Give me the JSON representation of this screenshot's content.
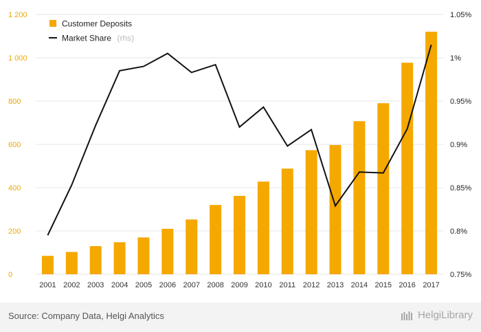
{
  "chart_data": {
    "type": "bar",
    "categories": [
      "2001",
      "2002",
      "2003",
      "2004",
      "2005",
      "2006",
      "2007",
      "2008",
      "2009",
      "2010",
      "2011",
      "2012",
      "2013",
      "2014",
      "2015",
      "2016",
      "2017"
    ],
    "series": [
      {
        "name": "Customer Deposits",
        "axis": "left",
        "type": "bar",
        "color": "#f5a800",
        "values": [
          85,
          103,
          130,
          148,
          170,
          210,
          253,
          320,
          362,
          428,
          488,
          573,
          597,
          707,
          790,
          977,
          1120
        ]
      },
      {
        "name": "Market Share",
        "name_suffix": "(rhs)",
        "axis": "right",
        "type": "line",
        "color": "#111111",
        "values": [
          0.795,
          0.853,
          0.922,
          0.985,
          0.99,
          1.005,
          0.983,
          0.992,
          0.92,
          0.943,
          0.898,
          0.917,
          0.829,
          0.868,
          0.867,
          0.918,
          1.015
        ]
      }
    ],
    "y_left": {
      "min": 0,
      "max": 1200,
      "ticks": [
        0,
        200,
        400,
        600,
        800,
        1000,
        1200
      ],
      "tick_labels": [
        "0",
        "200",
        "400",
        "600",
        "800",
        "1 000",
        "1 200"
      ]
    },
    "y_right": {
      "min": 0.75,
      "max": 1.05,
      "ticks": [
        0.75,
        0.8,
        0.85,
        0.9,
        0.95,
        1.0,
        1.05
      ],
      "tick_labels": [
        "0.75%",
        "0.8%",
        "0.85%",
        "0.9%",
        "0.95%",
        "1%",
        "1.05%"
      ]
    },
    "grid": true,
    "legend_position": "top-left"
  },
  "footer": {
    "source": "Source: Company Data, Helgi Analytics",
    "logo_text": "HelgiLibrary"
  }
}
